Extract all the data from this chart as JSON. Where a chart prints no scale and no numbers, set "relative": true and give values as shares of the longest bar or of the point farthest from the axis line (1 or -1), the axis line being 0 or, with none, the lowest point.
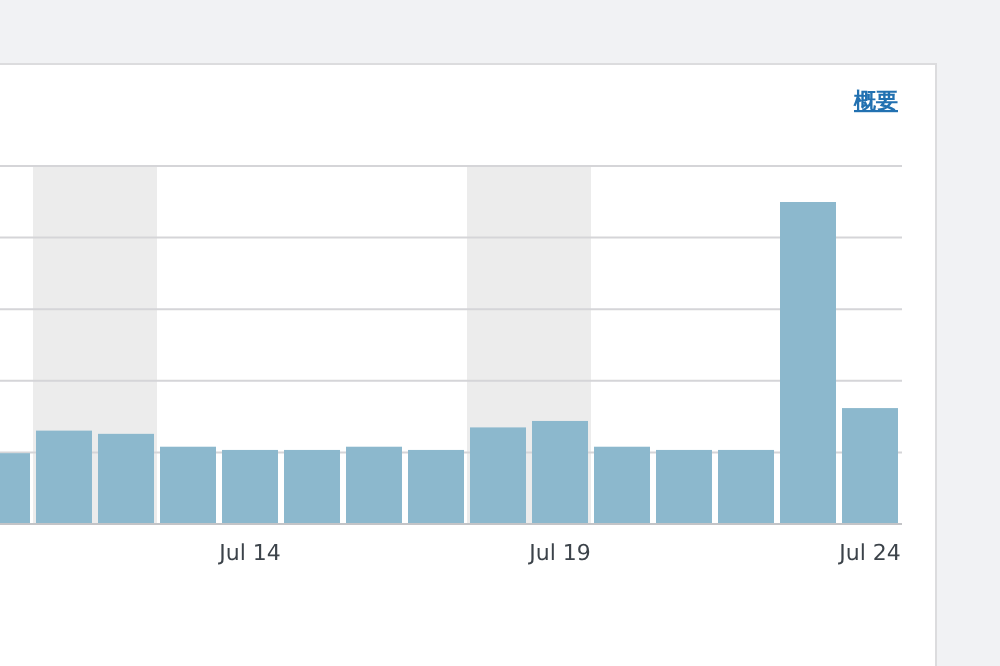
{
  "chart_data": {
    "type": "bar",
    "relative": true,
    "grid": "y",
    "color": "#8cb8cd",
    "categories": [
      null,
      null,
      null,
      null,
      "Jul 14",
      null,
      null,
      null,
      null,
      "Jul 19",
      null,
      null,
      null,
      null,
      "Jul 24"
    ],
    "values": [
      0.22,
      0.29,
      0.28,
      0.24,
      0.23,
      0.23,
      0.24,
      0.23,
      0.3,
      0.32,
      0.24,
      0.23,
      0.23,
      1,
      0.36
    ],
    "annotations": [
      "概要"
    ]
  }
}
